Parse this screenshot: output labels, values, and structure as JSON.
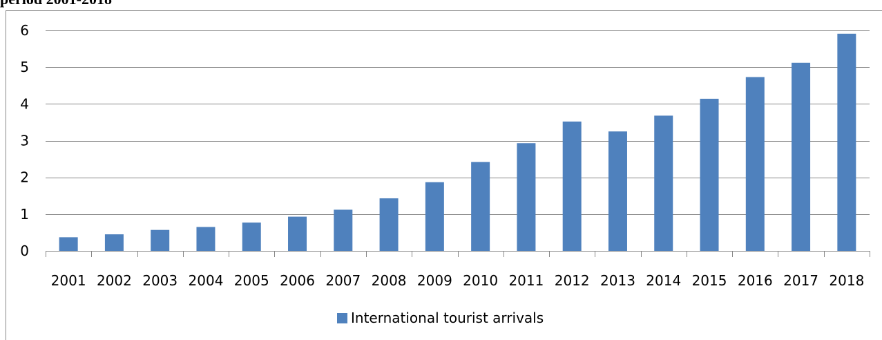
{
  "page": {
    "clipped_title": "period 2001-2018"
  },
  "chart_data": {
    "type": "bar",
    "categories": [
      "2001",
      "2002",
      "2003",
      "2004",
      "2005",
      "2006",
      "2007",
      "2008",
      "2009",
      "2010",
      "2011",
      "2012",
      "2013",
      "2014",
      "2015",
      "2016",
      "2017",
      "2018"
    ],
    "series": [
      {
        "name": "International tourist arrivals",
        "color": "#4f81bd",
        "values": [
          0.37,
          0.45,
          0.57,
          0.65,
          0.77,
          0.93,
          1.12,
          1.43,
          1.87,
          2.42,
          2.93,
          3.52,
          3.25,
          3.68,
          4.14,
          4.73,
          5.12,
          5.91
        ]
      }
    ],
    "title": "",
    "xlabel": "",
    "ylabel": "",
    "ylim": [
      0,
      6
    ],
    "yticks": [
      0,
      1,
      2,
      3,
      4,
      5,
      6
    ],
    "grid": true,
    "legend": "bottom",
    "gridline_color": "#868686"
  }
}
